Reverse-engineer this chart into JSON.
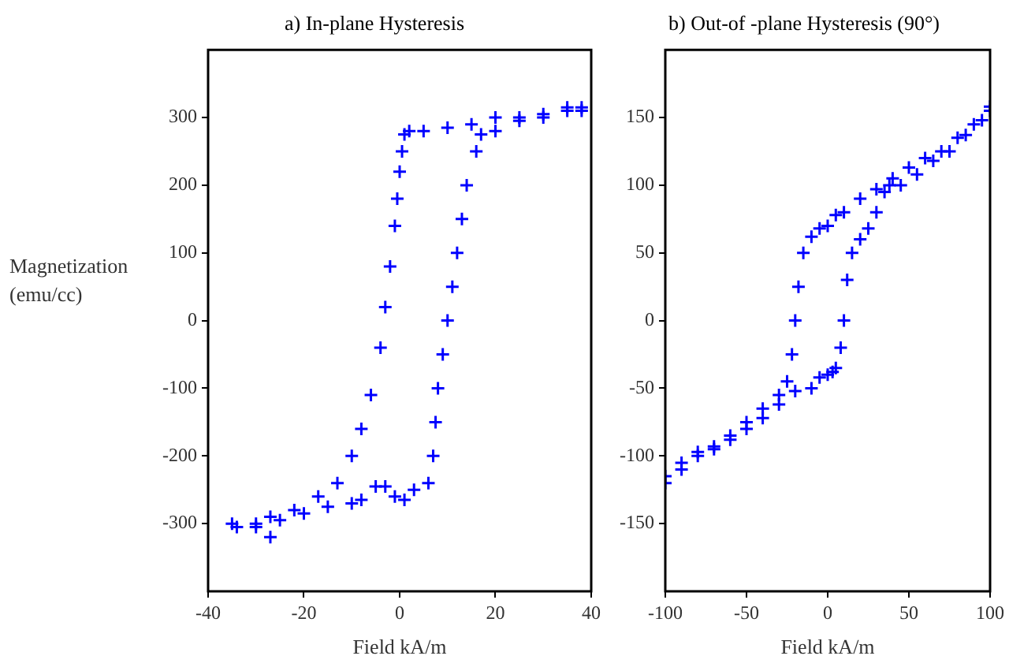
{
  "chart_data": [
    {
      "type": "scatter",
      "title": "a) In-plane Hysteresis",
      "xlabel": "Field kA/m",
      "ylabel": "Magnetization (emu/cc)",
      "xlim": [
        -40,
        40
      ],
      "xticks": [
        -40,
        -20,
        0,
        20,
        40
      ],
      "ylim": [
        -400,
        400
      ],
      "yticks": [
        -300,
        -200,
        -100,
        0,
        100,
        200,
        300
      ],
      "grid": false,
      "legend": false,
      "marker": "cross",
      "series": [
        {
          "color": "#0000ff",
          "x": [
            38,
            35,
            30,
            25,
            20,
            15,
            10,
            5,
            2,
            1,
            0.5,
            0,
            -0.5,
            -1,
            -2,
            -3,
            -4,
            -6,
            -8,
            -10,
            -13,
            -17,
            -22,
            -27,
            -30,
            -34
          ],
          "values": [
            310,
            315,
            305,
            300,
            300,
            290,
            285,
            280,
            280,
            275,
            250,
            220,
            180,
            140,
            80,
            20,
            -40,
            -110,
            -160,
            -200,
            -240,
            -260,
            -280,
            -290,
            -300,
            -305
          ]
        },
        {
          "color": "#0000ff",
          "x": [
            -35,
            -30,
            -27,
            -25,
            -20,
            -15,
            -10,
            -8,
            -5,
            -3,
            -1,
            1,
            3,
            6,
            7,
            7.5,
            8,
            9,
            10,
            11,
            12,
            13,
            14,
            16,
            17,
            20,
            25,
            30,
            35,
            38
          ],
          "values": [
            -300,
            -305,
            -320,
            -295,
            -285,
            -275,
            -270,
            -265,
            -245,
            -245,
            -260,
            -265,
            -250,
            -240,
            -200,
            -150,
            -100,
            -50,
            0,
            50,
            100,
            150,
            200,
            250,
            275,
            280,
            295,
            300,
            310,
            315
          ]
        }
      ]
    },
    {
      "type": "scatter",
      "title": "b) Out-of -plane Hysteresis (90°)",
      "xlabel": "Field kA/m",
      "xlim": [
        -100,
        100
      ],
      "xticks": [
        -100,
        -50,
        0,
        50,
        100
      ],
      "ylim": [
        -200,
        200
      ],
      "yticks": [
        -150,
        -100,
        -50,
        0,
        50,
        100,
        150
      ],
      "grid": false,
      "legend": false,
      "marker": "cross",
      "series": [
        {
          "color": "#0000ff",
          "x": [
            100,
            90,
            80,
            70,
            60,
            50,
            40,
            30,
            20,
            10,
            5,
            0,
            -5,
            -10,
            -15,
            -18,
            -20,
            -22,
            -25,
            -30,
            -40,
            -50,
            -60,
            -70,
            -80,
            -90,
            -100
          ],
          "values": [
            155,
            145,
            135,
            125,
            120,
            113,
            105,
            97,
            90,
            80,
            78,
            70,
            68,
            62,
            50,
            25,
            0,
            -25,
            -45,
            -55,
            -65,
            -75,
            -85,
            -93,
            -97,
            -105,
            -115
          ]
        },
        {
          "color": "#0000ff",
          "x": [
            -100,
            -90,
            -80,
            -70,
            -60,
            -50,
            -40,
            -30,
            -20,
            -10,
            -5,
            0,
            3,
            5,
            8,
            10,
            12,
            15,
            20,
            25,
            30,
            35,
            38,
            45,
            55,
            65,
            75,
            85,
            95,
            100
          ],
          "values": [
            -120,
            -110,
            -100,
            -95,
            -88,
            -80,
            -72,
            -62,
            -52,
            -50,
            -42,
            -40,
            -38,
            -35,
            -20,
            0,
            30,
            50,
            60,
            68,
            80,
            95,
            100,
            100,
            108,
            118,
            125,
            137,
            148,
            158
          ]
        }
      ]
    }
  ]
}
